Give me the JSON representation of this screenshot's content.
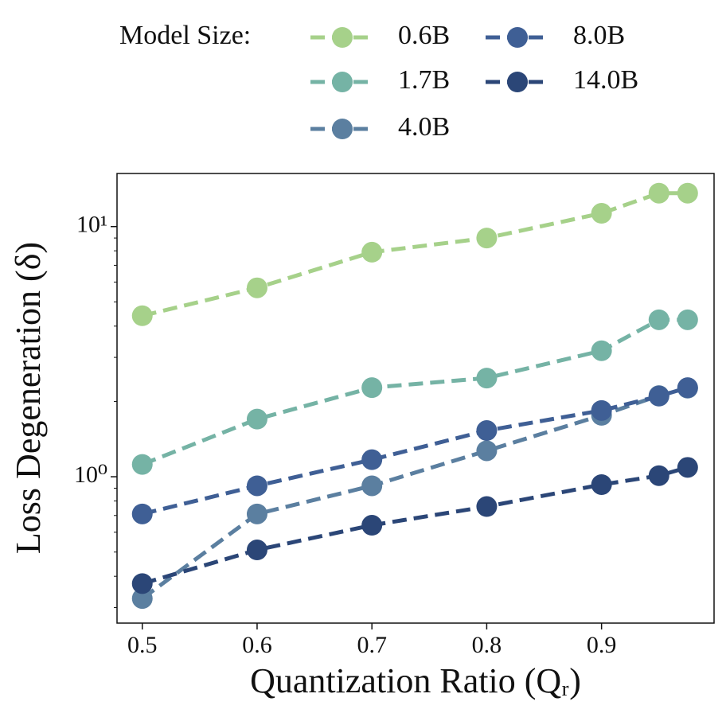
{
  "chart_data": {
    "type": "line",
    "xlabel": "Quantization Ratio (Qᵣ)",
    "ylabel": "Loss Degeneration (δ)",
    "legend_title": "Model Size:",
    "x": [
      0.5,
      0.6,
      0.7,
      0.8,
      0.9,
      0.95,
      0.975
    ],
    "series": [
      {
        "name": "0.6B",
        "color": "#a6d18a",
        "values": [
          4.4,
          5.69,
          7.9,
          9.0,
          11.3,
          13.6,
          13.6
        ]
      },
      {
        "name": "1.7B",
        "color": "#75b3a5",
        "values": [
          1.12,
          1.7,
          2.27,
          2.48,
          3.19,
          4.24,
          4.24
        ]
      },
      {
        "name": "4.0B",
        "color": "#5b7fa0",
        "values": [
          0.326,
          0.71,
          0.92,
          1.27,
          1.76,
          2.11,
          2.26
        ]
      },
      {
        "name": "8.0B",
        "color": "#3f5f95",
        "values": [
          0.71,
          0.92,
          1.17,
          1.53,
          1.84,
          2.1,
          2.27
        ]
      },
      {
        "name": "14.0B",
        "color": "#2b4677",
        "values": [
          0.374,
          0.51,
          0.64,
          0.76,
          0.93,
          1.01,
          1.09
        ]
      }
    ],
    "xlim": [
      0.478,
      0.998
    ],
    "xticks": [
      0.5,
      0.6,
      0.7,
      0.8,
      0.9
    ],
    "ylim": [
      0.26,
      16.3
    ],
    "yscale": "log",
    "yticks": [
      {
        "value": 1,
        "label": "10⁰"
      },
      {
        "value": 10,
        "label": "10¹"
      }
    ],
    "yminorticks": [
      0.3,
      0.4,
      0.5,
      0.6,
      0.7,
      0.8,
      0.9,
      2,
      3,
      4,
      5,
      6,
      7,
      8,
      9
    ],
    "grid": false,
    "legend_position": "top"
  }
}
